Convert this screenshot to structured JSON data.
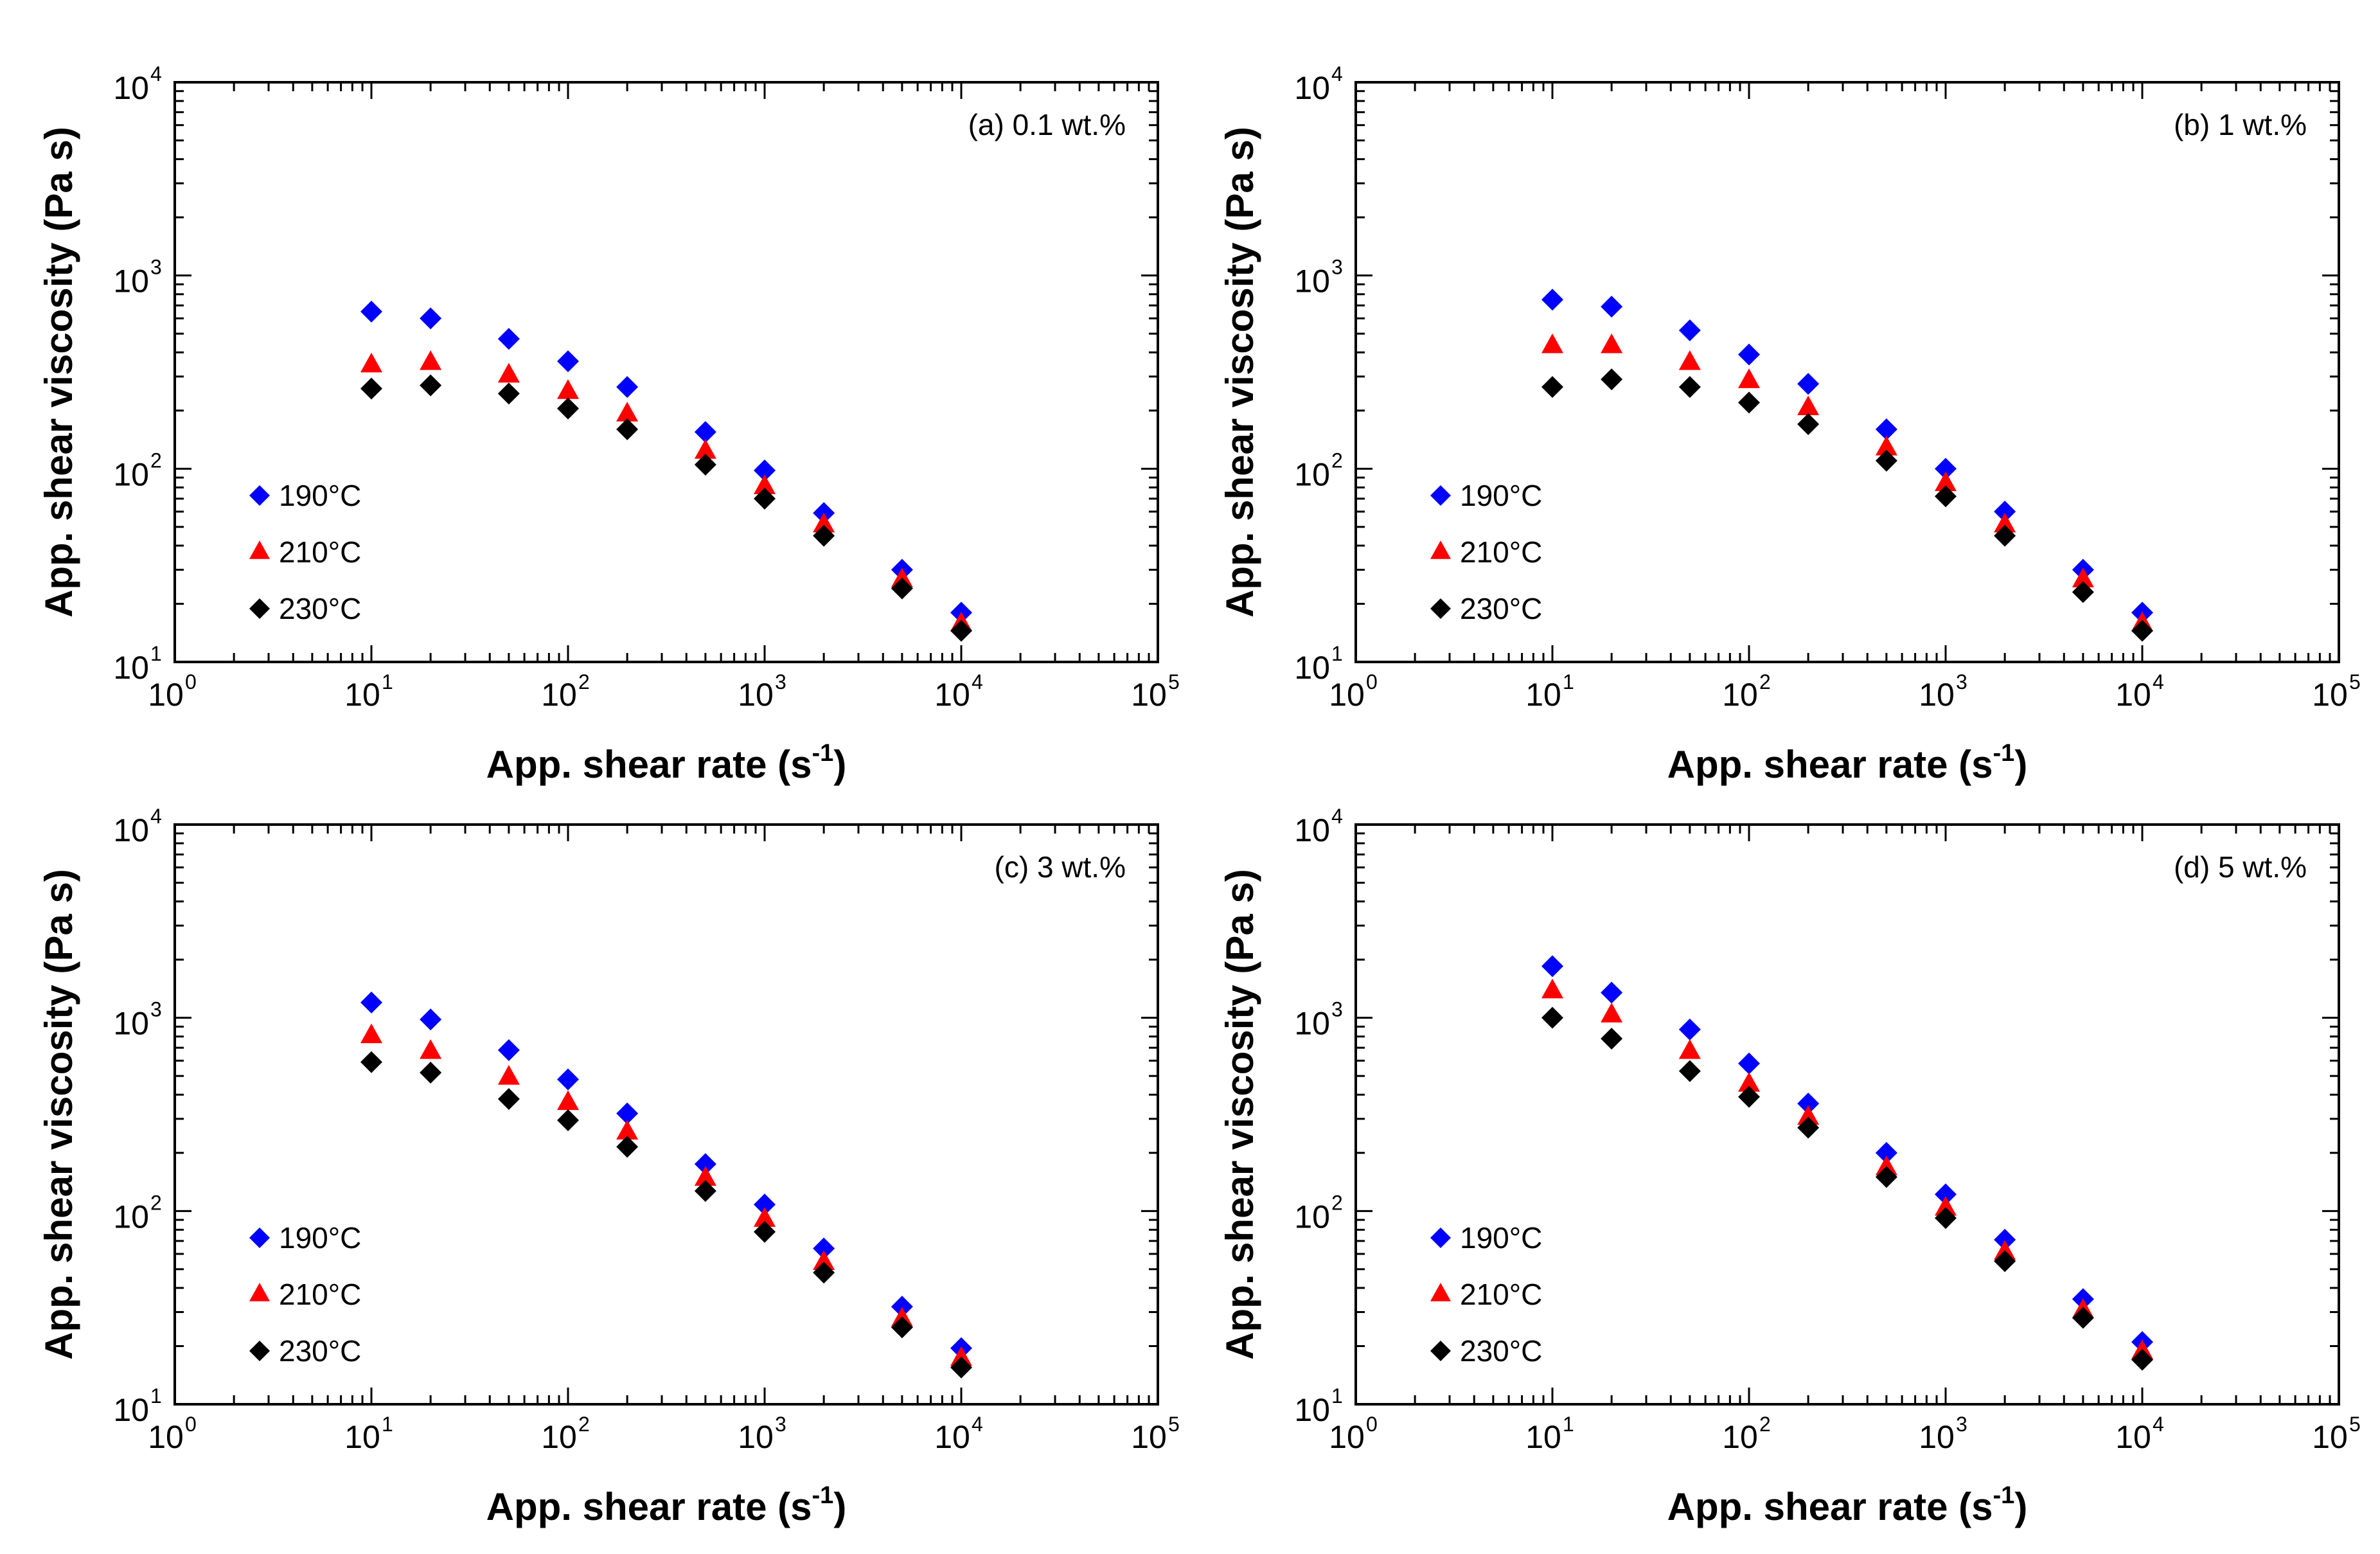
{
  "chart_data": [
    {
      "type": "scatter",
      "panel_label": "(a)  0.1 wt.%",
      "xlabel": "App. shear rate",
      "xlabel_unit_base": "(s",
      "xlabel_unit_exp": "-1",
      "xlabel_unit_close": ")",
      "ylabel": "App. shear viscosity (Pa s)",
      "xscale": "log",
      "yscale": "log",
      "xlim": [
        1,
        100000
      ],
      "ylim": [
        10,
        10000
      ],
      "x_tick_labels": [
        {
          "base": "10",
          "exp": "0"
        },
        {
          "base": "10",
          "exp": "1"
        },
        {
          "base": "10",
          "exp": "2"
        },
        {
          "base": "10",
          "exp": "3"
        },
        {
          "base": "10",
          "exp": "4"
        },
        {
          "base": "10",
          "exp": "5"
        }
      ],
      "y_tick_labels": [
        {
          "base": "10",
          "exp": "1"
        },
        {
          "base": "10",
          "exp": "2"
        },
        {
          "base": "10",
          "exp": "3"
        },
        {
          "base": "10",
          "exp": "4"
        }
      ],
      "legend_position": "lower-left",
      "series": [
        {
          "name": "190°C",
          "marker": "diamond",
          "color": "#0000ff",
          "x": [
            10,
            20,
            50,
            100,
            200,
            500,
            1000,
            2000,
            5000,
            10000
          ],
          "y": [
            650,
            600,
            470,
            360,
            265,
            155,
            98,
            59,
            30,
            18
          ]
        },
        {
          "name": "210°C",
          "marker": "triangle",
          "color": "#ff0000",
          "x": [
            10,
            20,
            50,
            100,
            200,
            500,
            1000,
            2000,
            5000,
            10000
          ],
          "y": [
            350,
            360,
            310,
            255,
            195,
            125,
            82,
            52,
            27,
            16
          ]
        },
        {
          "name": "230°C",
          "marker": "diamond",
          "color": "#000000",
          "x": [
            10,
            20,
            50,
            100,
            200,
            500,
            1000,
            2000,
            5000,
            10000
          ],
          "y": [
            260,
            270,
            245,
            205,
            160,
            105,
            70,
            45,
            24,
            14.5
          ]
        }
      ]
    },
    {
      "type": "scatter",
      "panel_label": "(b)  1 wt.%",
      "xlabel": "App. shear rate",
      "xlabel_unit_base": "(s",
      "xlabel_unit_exp": "-1",
      "xlabel_unit_close": ")",
      "ylabel": "App. shear viscosity (Pa s)",
      "xscale": "log",
      "yscale": "log",
      "xlim": [
        1,
        100000
      ],
      "ylim": [
        10,
        10000
      ],
      "x_tick_labels": [
        {
          "base": "10",
          "exp": "0"
        },
        {
          "base": "10",
          "exp": "1"
        },
        {
          "base": "10",
          "exp": "2"
        },
        {
          "base": "10",
          "exp": "3"
        },
        {
          "base": "10",
          "exp": "4"
        },
        {
          "base": "10",
          "exp": "5"
        }
      ],
      "y_tick_labels": [
        {
          "base": "10",
          "exp": "1"
        },
        {
          "base": "10",
          "exp": "2"
        },
        {
          "base": "10",
          "exp": "3"
        },
        {
          "base": "10",
          "exp": "4"
        }
      ],
      "legend_position": "lower-left",
      "series": [
        {
          "name": "190°C",
          "marker": "diamond",
          "color": "#0000ff",
          "x": [
            10,
            20,
            50,
            100,
            200,
            500,
            1000,
            2000,
            5000,
            10000
          ],
          "y": [
            750,
            690,
            520,
            390,
            275,
            160,
            100,
            60,
            30,
            18
          ]
        },
        {
          "name": "210°C",
          "marker": "triangle",
          "color": "#ff0000",
          "x": [
            10,
            20,
            50,
            100,
            200,
            500,
            1000,
            2000,
            5000,
            10000
          ],
          "y": [
            440,
            440,
            360,
            290,
            210,
            130,
            85,
            52,
            27,
            16
          ]
        },
        {
          "name": "230°C",
          "marker": "diamond",
          "color": "#000000",
          "x": [
            10,
            20,
            50,
            100,
            200,
            500,
            1000,
            2000,
            5000,
            10000
          ],
          "y": [
            265,
            290,
            265,
            220,
            170,
            110,
            72,
            45,
            23,
            14.5
          ]
        }
      ]
    },
    {
      "type": "scatter",
      "panel_label": "(c)  3 wt.%",
      "xlabel": "App. shear rate",
      "xlabel_unit_base": "(s",
      "xlabel_unit_exp": "-1",
      "xlabel_unit_close": ")",
      "ylabel": "App. shear viscosity (Pa s)",
      "xscale": "log",
      "yscale": "log",
      "xlim": [
        1,
        100000
      ],
      "ylim": [
        10,
        10000
      ],
      "x_tick_labels": [
        {
          "base": "10",
          "exp": "0"
        },
        {
          "base": "10",
          "exp": "1"
        },
        {
          "base": "10",
          "exp": "2"
        },
        {
          "base": "10",
          "exp": "3"
        },
        {
          "base": "10",
          "exp": "4"
        },
        {
          "base": "10",
          "exp": "5"
        }
      ],
      "y_tick_labels": [
        {
          "base": "10",
          "exp": "1"
        },
        {
          "base": "10",
          "exp": "2"
        },
        {
          "base": "10",
          "exp": "3"
        },
        {
          "base": "10",
          "exp": "4"
        }
      ],
      "legend_position": "lower-left",
      "series": [
        {
          "name": "190°C",
          "marker": "diamond",
          "color": "#0000ff",
          "x": [
            10,
            20,
            50,
            100,
            200,
            500,
            1000,
            2000,
            5000,
            10000
          ],
          "y": [
            1200,
            980,
            680,
            480,
            320,
            175,
            108,
            64,
            32,
            19.5
          ]
        },
        {
          "name": "210°C",
          "marker": "triangle",
          "color": "#ff0000",
          "x": [
            10,
            20,
            50,
            100,
            200,
            500,
            1000,
            2000,
            5000,
            10000
          ],
          "y": [
            820,
            680,
            500,
            370,
            260,
            150,
            92,
            55,
            28,
            17.5
          ]
        },
        {
          "name": "230°C",
          "marker": "diamond",
          "color": "#000000",
          "x": [
            10,
            20,
            50,
            100,
            200,
            500,
            1000,
            2000,
            5000,
            10000
          ],
          "y": [
            590,
            520,
            380,
            295,
            215,
            127,
            78,
            48,
            25,
            15.5
          ]
        }
      ]
    },
    {
      "type": "scatter",
      "panel_label": "(d)  5 wt.%",
      "xlabel": "App. shear rate",
      "xlabel_unit_base": "(s",
      "xlabel_unit_exp": "-1",
      "xlabel_unit_close": ")",
      "ylabel": "App. shear viscosity (Pa s)",
      "xscale": "log",
      "yscale": "log",
      "xlim": [
        1,
        100000
      ],
      "ylim": [
        10,
        10000
      ],
      "x_tick_labels": [
        {
          "base": "10",
          "exp": "0"
        },
        {
          "base": "10",
          "exp": "1"
        },
        {
          "base": "10",
          "exp": "2"
        },
        {
          "base": "10",
          "exp": "3"
        },
        {
          "base": "10",
          "exp": "4"
        },
        {
          "base": "10",
          "exp": "5"
        }
      ],
      "y_tick_labels": [
        {
          "base": "10",
          "exp": "1"
        },
        {
          "base": "10",
          "exp": "2"
        },
        {
          "base": "10",
          "exp": "3"
        },
        {
          "base": "10",
          "exp": "4"
        }
      ],
      "legend_position": "lower-left",
      "series": [
        {
          "name": "190°C",
          "marker": "diamond",
          "color": "#0000ff",
          "x": [
            10,
            20,
            50,
            100,
            200,
            500,
            1000,
            2000,
            5000,
            10000
          ],
          "y": [
            1850,
            1350,
            870,
            580,
            360,
            200,
            122,
            71,
            35,
            21
          ]
        },
        {
          "name": "210°C",
          "marker": "triangle",
          "color": "#ff0000",
          "x": [
            10,
            20,
            50,
            100,
            200,
            500,
            1000,
            2000,
            5000,
            10000
          ],
          "y": [
            1400,
            1050,
            680,
            460,
            310,
            170,
            105,
            62,
            31,
            19
          ]
        },
        {
          "name": "230°C",
          "marker": "diamond",
          "color": "#000000",
          "x": [
            10,
            20,
            50,
            100,
            200,
            500,
            1000,
            2000,
            5000,
            10000
          ],
          "y": [
            1000,
            780,
            530,
            390,
            270,
            150,
            92,
            55,
            28,
            17
          ]
        }
      ]
    }
  ]
}
